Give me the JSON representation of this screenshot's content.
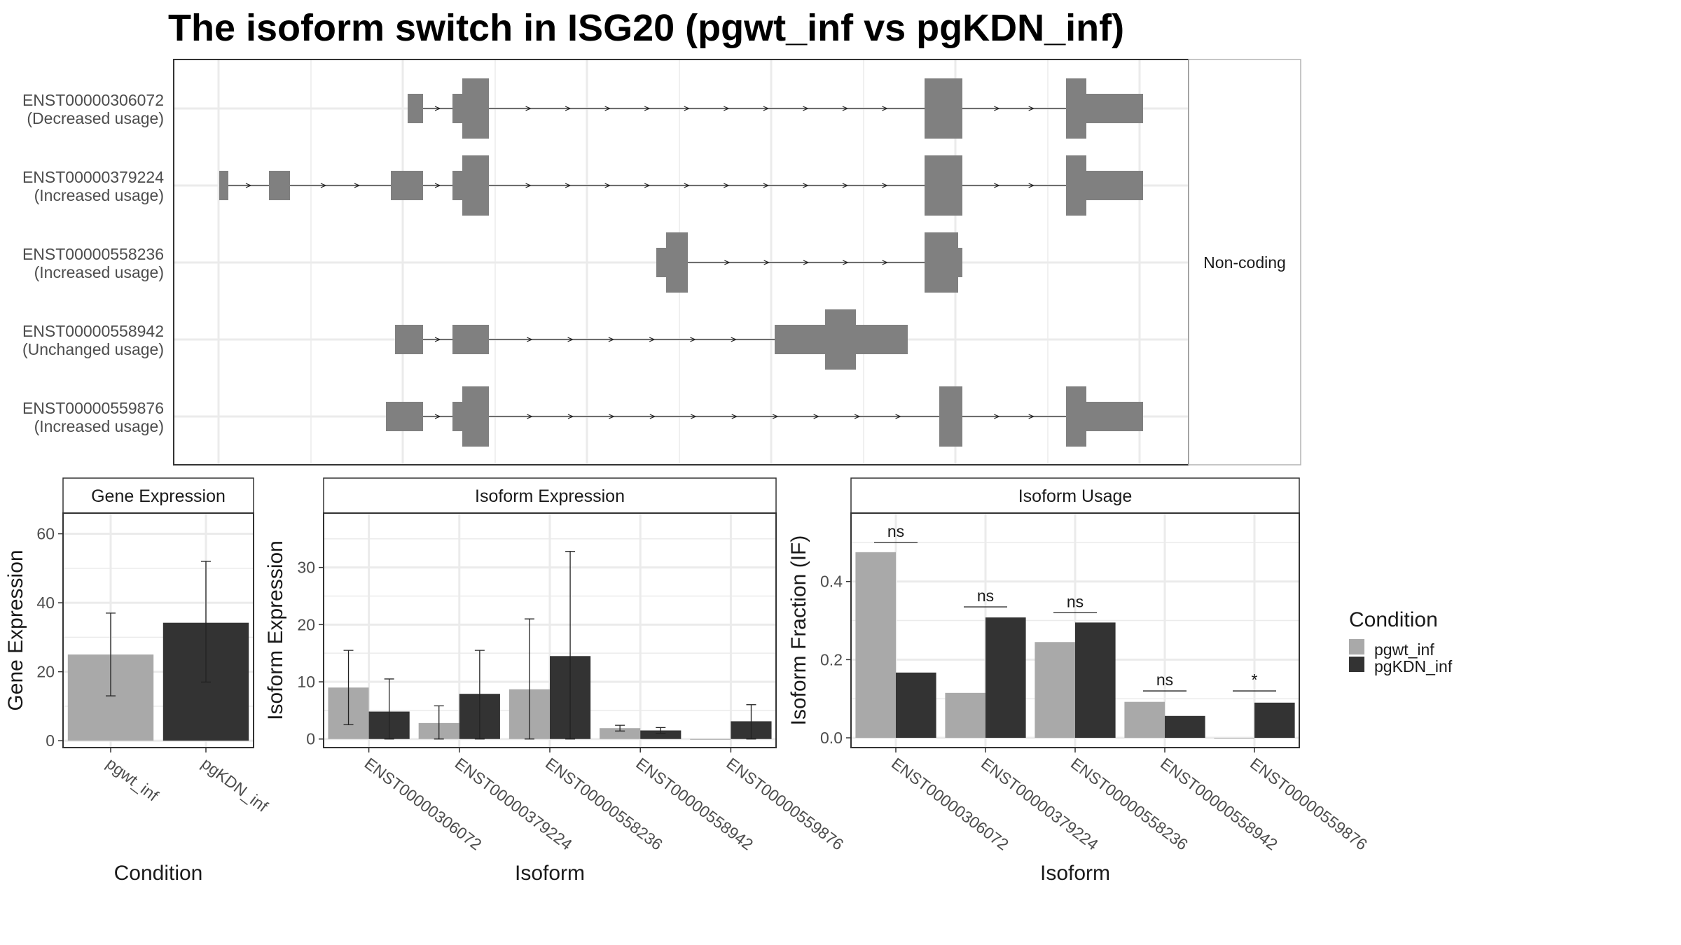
{
  "title": "The isoform switch in ISG20 (pgwt_inf vs pgKDN_inf)",
  "colors": {
    "pgwt_inf": "#a9a9a9",
    "pgKDN_inf": "#333333",
    "exon": "#808080",
    "grid": "#ebebeb",
    "frame": "#333333"
  },
  "chart_data": [
    {
      "type": "gene-structure",
      "isoforms": [
        {
          "id": "ENST00000306072",
          "usage": "(Decreased usage)"
        },
        {
          "id": "ENST00000379224",
          "usage": "(Increased usage)"
        },
        {
          "id": "ENST00000558236",
          "usage": "(Increased usage)"
        },
        {
          "id": "ENST00000558942",
          "usage": "(Unchanged usage)"
        },
        {
          "id": "ENST00000559876",
          "usage": "(Increased usage)"
        }
      ],
      "strip_label": "Non-coding"
    },
    {
      "type": "bar",
      "panel": "Gene Expression",
      "categories": [
        "pgwt_inf",
        "pgKDN_inf"
      ],
      "values": [
        25,
        34.2
      ],
      "error_low": [
        13,
        17
      ],
      "error_high": [
        37,
        52
      ],
      "xlabel": "Condition",
      "ylabel": "Gene Expression",
      "ylim": [
        -2,
        66
      ],
      "yticks": [
        0,
        20,
        40,
        60
      ]
    },
    {
      "type": "bar",
      "panel": "Isoform Expression",
      "categories": [
        "ENST00000306072",
        "ENST00000379224",
        "ENST00000558236",
        "ENST00000558942",
        "ENST00000559876"
      ],
      "series": [
        {
          "name": "pgwt_inf",
          "values": [
            9,
            2.8,
            8.7,
            1.9,
            0
          ],
          "error_low": [
            2.5,
            0,
            0,
            1.4,
            0
          ],
          "error_high": [
            15.5,
            5.8,
            21,
            2.4,
            0
          ]
        },
        {
          "name": "pgKDN_inf",
          "values": [
            4.8,
            7.9,
            14.5,
            1.5,
            3.1
          ],
          "error_low": [
            0,
            0,
            0,
            1,
            0
          ],
          "error_high": [
            10.5,
            15.5,
            32.8,
            2,
            6
          ]
        }
      ],
      "xlabel": "Isoform",
      "ylabel": "Isoform Expression",
      "ylim": [
        -1.5,
        39.5
      ],
      "yticks": [
        0,
        10,
        20,
        30
      ]
    },
    {
      "type": "bar",
      "panel": "Isoform Usage",
      "categories": [
        "ENST00000306072",
        "ENST00000379224",
        "ENST00000558236",
        "ENST00000558942",
        "ENST00000559876"
      ],
      "series": [
        {
          "name": "pgwt_inf",
          "values": [
            0.475,
            0.115,
            0.245,
            0.092,
            0
          ]
        },
        {
          "name": "pgKDN_inf",
          "values": [
            0.167,
            0.308,
            0.295,
            0.056,
            0.09
          ]
        }
      ],
      "significance": [
        "ns",
        "ns",
        "ns",
        "ns",
        "*"
      ],
      "significance_y": [
        0.5,
        0.335,
        0.32,
        0.12,
        0.12
      ],
      "xlabel": "Isoform",
      "ylabel": "Isoform Fraction (IF)",
      "ylim": [
        -0.025,
        0.575
      ],
      "yticks": [
        0.0,
        0.2,
        0.4
      ],
      "ytick_labels": [
        "0.0",
        "0.2",
        "0.4"
      ]
    }
  ],
  "legend": {
    "title": "Condition",
    "placement": "right",
    "entries": [
      "pgwt_inf",
      "pgKDN_inf"
    ]
  }
}
